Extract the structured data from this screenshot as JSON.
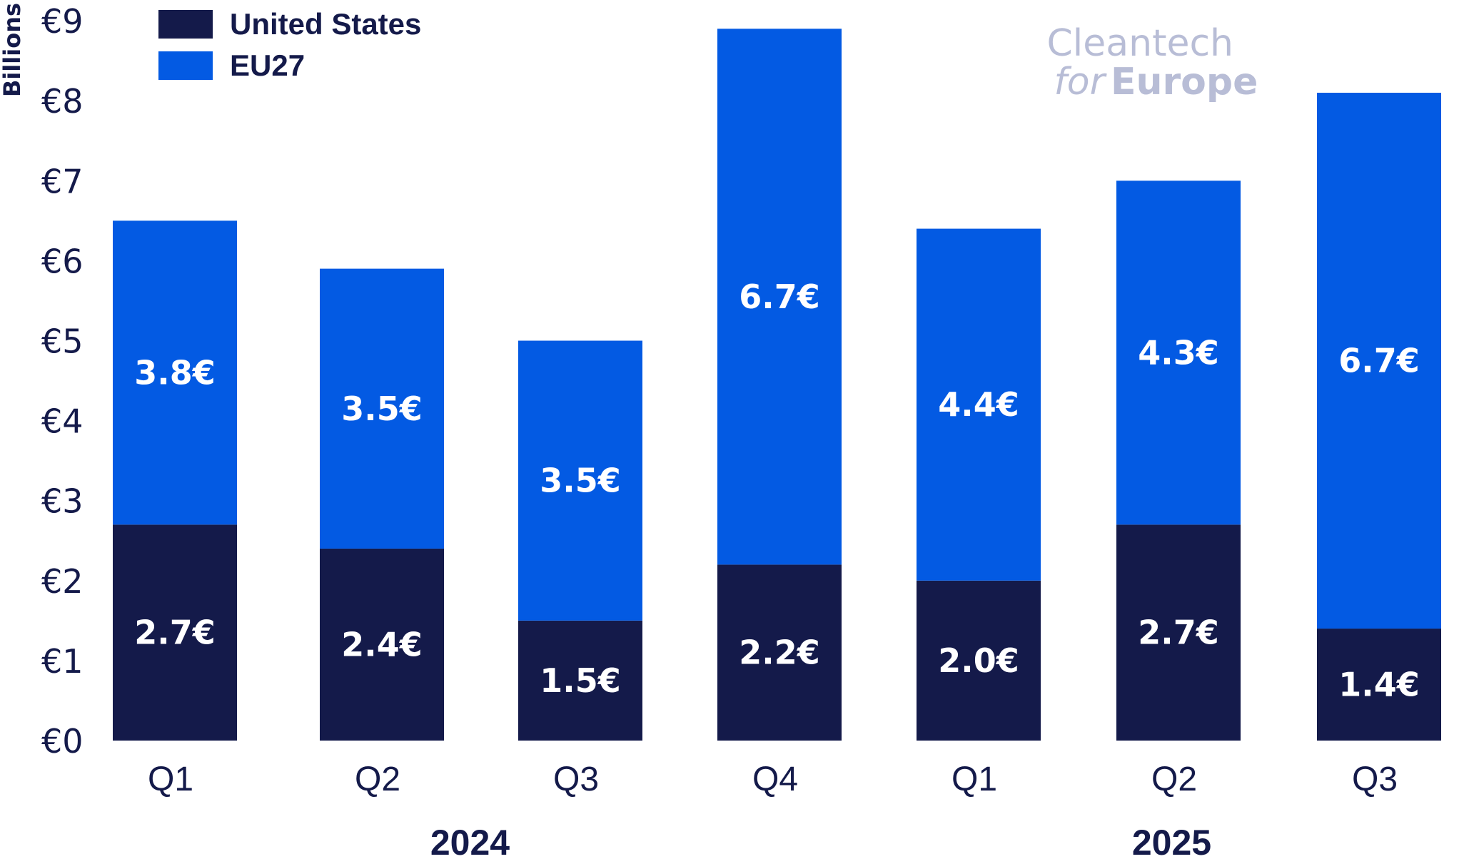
{
  "chart_data": {
    "type": "bar",
    "stacked": true,
    "ylabel": "Billions",
    "ylim": [
      0,
      9
    ],
    "ytick_values": [
      0,
      1,
      2,
      3,
      4,
      5,
      6,
      7,
      8,
      9
    ],
    "yticks": [
      "€0",
      "€1",
      "€2",
      "€3",
      "€4",
      "€5",
      "€6",
      "€7",
      "€8",
      "€9"
    ],
    "categories": [
      "Q1",
      "Q2",
      "Q3",
      "Q4",
      "Q1",
      "Q2",
      "Q3"
    ],
    "groups": [
      {
        "label": "2024",
        "count": 4
      },
      {
        "label": "2025",
        "count": 3
      }
    ],
    "series": [
      {
        "name": "United States",
        "color": "#141a4a",
        "values": [
          2.7,
          2.4,
          1.5,
          2.2,
          2.0,
          2.7,
          1.4
        ],
        "labels": [
          "2.7€",
          "2.4€",
          "1.5€",
          "2.2€",
          "2.0€",
          "2.7€",
          "1.4€"
        ]
      },
      {
        "name": "EU27",
        "color": "#035ae3",
        "values": [
          3.8,
          3.5,
          3.5,
          6.7,
          4.4,
          4.3,
          6.7
        ],
        "labels": [
          "3.8€",
          "3.5€",
          "3.5€",
          "6.7€",
          "4.4€",
          "4.3€",
          "6.7€"
        ]
      }
    ],
    "legend_position": "top-left",
    "text_color": "#141a4a"
  },
  "logo": {
    "line1": "Cleantech",
    "line2_a": "for",
    "line2_b": "Europe",
    "color": "#b8bdd6"
  }
}
